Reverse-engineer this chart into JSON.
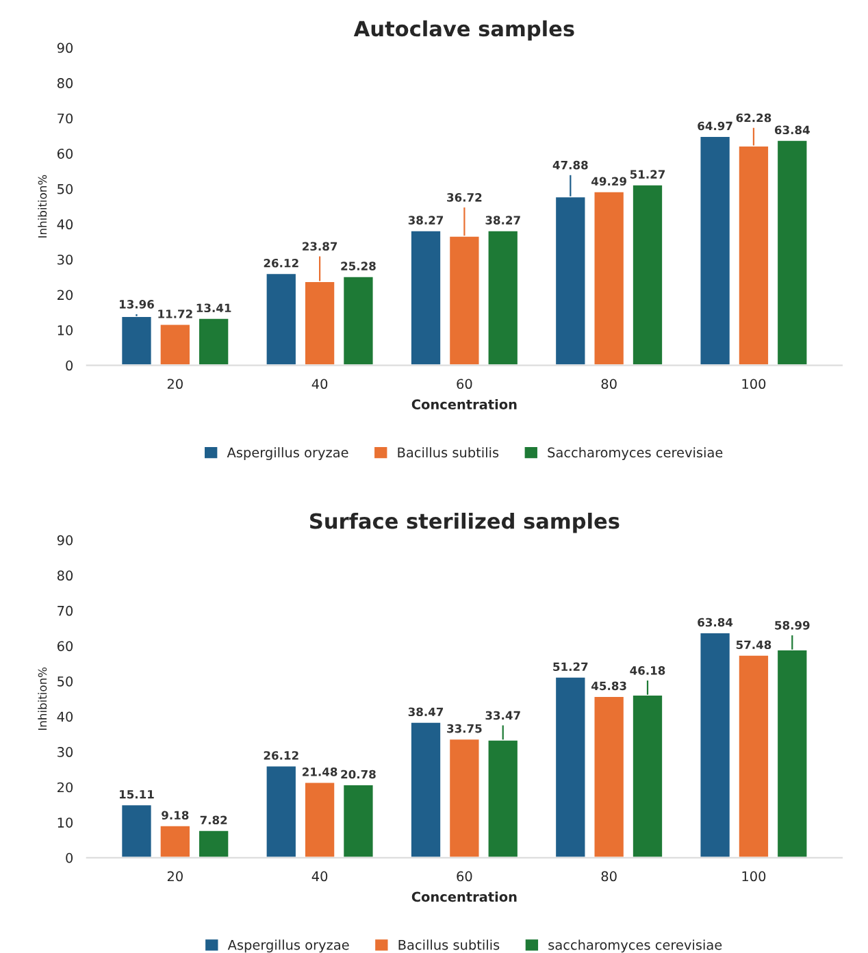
{
  "chart_data": [
    {
      "type": "bar",
      "title": "Autoclave samples",
      "xlabel": "Concentration",
      "ylabel": "Inhibition%",
      "categories": [
        "20",
        "40",
        "60",
        "80",
        "100"
      ],
      "ylim": [
        0,
        90
      ],
      "yticks": [
        0,
        10,
        20,
        30,
        40,
        50,
        60,
        70,
        80,
        90
      ],
      "data_labels": true,
      "legend": "bottom",
      "grid": false,
      "series": [
        {
          "name": "Aspergillus oryzae",
          "color": "#1f5f8b",
          "values": [
            13.96,
            26.12,
            38.27,
            47.88,
            64.97
          ],
          "errors": [
            0.5,
            null,
            null,
            6,
            null
          ]
        },
        {
          "name": "Bacillus subtilis",
          "color": "#e97132",
          "values": [
            11.72,
            23.87,
            36.72,
            49.29,
            62.28
          ],
          "errors": [
            null,
            7,
            8,
            null,
            5
          ]
        },
        {
          "name": "Saccharomyces cerevisiae",
          "color": "#1e7a36",
          "values": [
            13.41,
            25.28,
            38.27,
            51.27,
            63.84
          ]
        }
      ]
    },
    {
      "type": "bar",
      "title": "Surface sterilized samples",
      "xlabel": "Concentration",
      "ylabel": "Inhibition%",
      "categories": [
        "20",
        "40",
        "60",
        "80",
        "100"
      ],
      "ylim": [
        0,
        90
      ],
      "yticks": [
        0,
        10,
        20,
        30,
        40,
        50,
        60,
        70,
        80,
        90
      ],
      "data_labels": true,
      "legend": "bottom",
      "grid": false,
      "series": [
        {
          "name": "Aspergillus oryzae",
          "color": "#1f5f8b",
          "values": [
            15.11,
            26.12,
            38.47,
            51.27,
            63.84
          ]
        },
        {
          "name": "Bacillus subtilis",
          "color": "#e97132",
          "values": [
            9.18,
            21.48,
            33.75,
            45.83,
            57.48
          ]
        },
        {
          "name": "saccharomyces cerevisiae",
          "color": "#1e7a36",
          "values": [
            7.82,
            20.78,
            33.47,
            46.18,
            58.99
          ],
          "errors": [
            null,
            null,
            4,
            4,
            4
          ]
        }
      ]
    }
  ]
}
